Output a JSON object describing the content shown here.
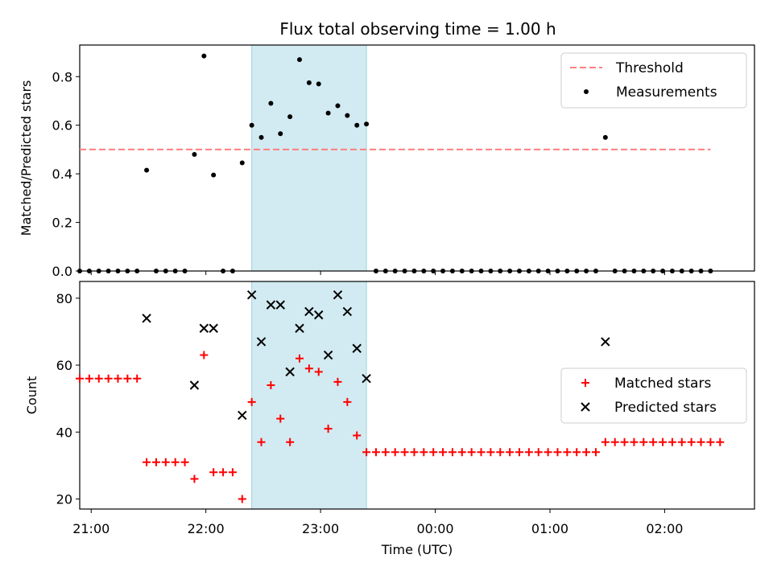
{
  "title": "Flux total observing time = 1.00 h",
  "colors": {
    "threshold": "#ff7f7f",
    "measurement": "#000000",
    "matched": "#ff0000",
    "predicted": "#000000",
    "highlight": "#add8e6"
  },
  "chart_data": [
    {
      "type": "scatter",
      "ylabel": "Matched/Predicted stars",
      "xlim": [
        "20:54",
        "02:47"
      ],
      "ylim": [
        0,
        0.93
      ],
      "yticks": [
        0.0,
        0.2,
        0.4,
        0.6,
        0.8
      ],
      "ytick_labels": [
        "0.0",
        "0.2",
        "0.4",
        "0.6",
        "0.8"
      ],
      "highlight_span": [
        "22:24",
        "23:24"
      ],
      "legend": {
        "placement": "top-right",
        "entries": [
          "Threshold",
          "Measurements"
        ]
      },
      "threshold": {
        "name": "Threshold",
        "y": 0.5,
        "x_range": [
          "20:54",
          "02:24"
        ],
        "style": "dashed"
      },
      "series": [
        {
          "name": "Measurements",
          "points": [
            [
              "20:54",
              0
            ],
            [
              "20:59",
              0
            ],
            [
              "21:04",
              0
            ],
            [
              "21:09",
              0
            ],
            [
              "21:14",
              0
            ],
            [
              "21:19",
              0
            ],
            [
              "21:24",
              0
            ],
            [
              "21:29",
              0.415
            ],
            [
              "21:34",
              0
            ],
            [
              "21:39",
              0
            ],
            [
              "21:44",
              0
            ],
            [
              "21:49",
              0
            ],
            [
              "21:54",
              0.48
            ],
            [
              "21:59",
              0.885
            ],
            [
              "22:04",
              0.395
            ],
            [
              "22:09",
              0
            ],
            [
              "22:14",
              0
            ],
            [
              "22:19",
              0.445
            ],
            [
              "22:24",
              0.6
            ],
            [
              "22:29",
              0.55
            ],
            [
              "22:34",
              0.69
            ],
            [
              "22:39",
              0.565
            ],
            [
              "22:44",
              0.635
            ],
            [
              "22:49",
              0.87
            ],
            [
              "22:54",
              0.775
            ],
            [
              "22:59",
              0.77
            ],
            [
              "23:04",
              0.65
            ],
            [
              "23:09",
              0.68
            ],
            [
              "23:14",
              0.64
            ],
            [
              "23:19",
              0.6
            ],
            [
              "23:24",
              0.605
            ],
            [
              "23:29",
              0
            ],
            [
              "23:34",
              0
            ],
            [
              "23:39",
              0
            ],
            [
              "23:44",
              0
            ],
            [
              "23:49",
              0
            ],
            [
              "23:54",
              0
            ],
            [
              "23:59",
              0
            ],
            [
              "00:04",
              0
            ],
            [
              "00:09",
              0
            ],
            [
              "00:14",
              0
            ],
            [
              "00:19",
              0
            ],
            [
              "00:24",
              0
            ],
            [
              "00:29",
              0
            ],
            [
              "00:34",
              0
            ],
            [
              "00:39",
              0
            ],
            [
              "00:44",
              0
            ],
            [
              "00:49",
              0
            ],
            [
              "00:54",
              0
            ],
            [
              "00:59",
              0
            ],
            [
              "01:04",
              0
            ],
            [
              "01:09",
              0
            ],
            [
              "01:14",
              0
            ],
            [
              "01:19",
              0
            ],
            [
              "01:24",
              0
            ],
            [
              "01:29",
              0.55
            ],
            [
              "01:34",
              0
            ],
            [
              "01:39",
              0
            ],
            [
              "01:44",
              0
            ],
            [
              "01:49",
              0
            ],
            [
              "01:54",
              0
            ],
            [
              "01:59",
              0
            ],
            [
              "02:04",
              0
            ],
            [
              "02:09",
              0
            ],
            [
              "02:14",
              0
            ],
            [
              "02:19",
              0
            ],
            [
              "02:24",
              0
            ]
          ]
        }
      ]
    },
    {
      "type": "scatter",
      "xlabel": "Time (UTC)",
      "ylabel": "Count",
      "xlim": [
        "20:54",
        "02:47"
      ],
      "ylim": [
        17,
        85
      ],
      "yticks": [
        20,
        40,
        60,
        80
      ],
      "ytick_labels": [
        "20",
        "40",
        "60",
        "80"
      ],
      "xticks": [
        "21:00",
        "22:00",
        "23:00",
        "00:00",
        "01:00",
        "02:00"
      ],
      "xtick_labels": [
        "21:00",
        "22:00",
        "23:00",
        "00:00",
        "01:00",
        "02:00"
      ],
      "highlight_span": [
        "22:24",
        "23:24"
      ],
      "legend": {
        "placement": "center-right",
        "entries": [
          "Matched stars",
          "Predicted stars"
        ]
      },
      "series": [
        {
          "name": "Matched stars",
          "marker": "+",
          "points": [
            [
              "20:54",
              56
            ],
            [
              "20:59",
              56
            ],
            [
              "21:04",
              56
            ],
            [
              "21:09",
              56
            ],
            [
              "21:14",
              56
            ],
            [
              "21:19",
              56
            ],
            [
              "21:24",
              56
            ],
            [
              "21:29",
              31
            ],
            [
              "21:34",
              31
            ],
            [
              "21:39",
              31
            ],
            [
              "21:44",
              31
            ],
            [
              "21:49",
              31
            ],
            [
              "21:54",
              26
            ],
            [
              "21:59",
              63
            ],
            [
              "22:04",
              28
            ],
            [
              "22:09",
              28
            ],
            [
              "22:14",
              28
            ],
            [
              "22:19",
              20
            ],
            [
              "22:24",
              49
            ],
            [
              "22:29",
              37
            ],
            [
              "22:34",
              54
            ],
            [
              "22:39",
              44
            ],
            [
              "22:44",
              37
            ],
            [
              "22:49",
              62
            ],
            [
              "22:54",
              59
            ],
            [
              "22:59",
              58
            ],
            [
              "23:04",
              41
            ],
            [
              "23:09",
              55
            ],
            [
              "23:14",
              49
            ],
            [
              "23:19",
              39
            ],
            [
              "23:24",
              34
            ],
            [
              "23:29",
              34
            ],
            [
              "23:34",
              34
            ],
            [
              "23:39",
              34
            ],
            [
              "23:44",
              34
            ],
            [
              "23:49",
              34
            ],
            [
              "23:54",
              34
            ],
            [
              "23:59",
              34
            ],
            [
              "00:04",
              34
            ],
            [
              "00:09",
              34
            ],
            [
              "00:14",
              34
            ],
            [
              "00:19",
              34
            ],
            [
              "00:24",
              34
            ],
            [
              "00:29",
              34
            ],
            [
              "00:34",
              34
            ],
            [
              "00:39",
              34
            ],
            [
              "00:44",
              34
            ],
            [
              "00:49",
              34
            ],
            [
              "00:54",
              34
            ],
            [
              "00:59",
              34
            ],
            [
              "01:04",
              34
            ],
            [
              "01:09",
              34
            ],
            [
              "01:14",
              34
            ],
            [
              "01:19",
              34
            ],
            [
              "01:24",
              34
            ],
            [
              "01:29",
              37
            ],
            [
              "01:34",
              37
            ],
            [
              "01:39",
              37
            ],
            [
              "01:44",
              37
            ],
            [
              "01:49",
              37
            ],
            [
              "01:54",
              37
            ],
            [
              "01:59",
              37
            ],
            [
              "02:04",
              37
            ],
            [
              "02:09",
              37
            ],
            [
              "02:14",
              37
            ],
            [
              "02:19",
              37
            ],
            [
              "02:24",
              37
            ],
            [
              "02:29",
              37
            ]
          ]
        },
        {
          "name": "Predicted stars",
          "marker": "x",
          "points": [
            [
              "21:29",
              74
            ],
            [
              "21:54",
              54
            ],
            [
              "21:59",
              71
            ],
            [
              "22:04",
              71
            ],
            [
              "22:19",
              45
            ],
            [
              "22:24",
              81
            ],
            [
              "22:29",
              67
            ],
            [
              "22:34",
              78
            ],
            [
              "22:39",
              78
            ],
            [
              "22:44",
              58
            ],
            [
              "22:49",
              71
            ],
            [
              "22:54",
              76
            ],
            [
              "22:59",
              75
            ],
            [
              "23:04",
              63
            ],
            [
              "23:09",
              81
            ],
            [
              "23:14",
              76
            ],
            [
              "23:19",
              65
            ],
            [
              "23:24",
              56
            ],
            [
              "01:29",
              67
            ]
          ]
        }
      ]
    }
  ]
}
